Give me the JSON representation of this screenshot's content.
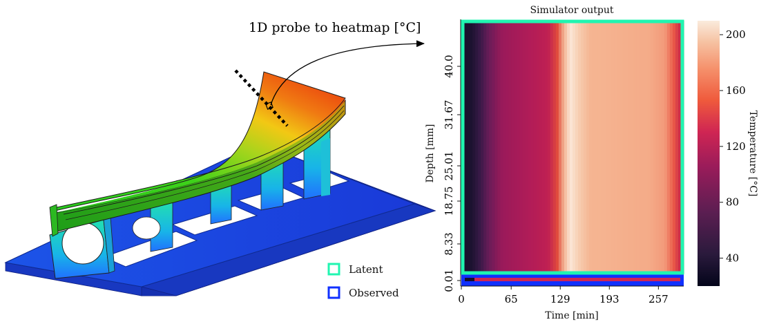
{
  "annotation": {
    "probe_label": "1D probe to heatmap [°C]"
  },
  "legend": {
    "items": [
      {
        "label": "Latent",
        "color": "#20f5b0"
      },
      {
        "label": "Observed",
        "color": "#1030ff"
      }
    ]
  },
  "heatmap": {
    "title": "Simulator output",
    "xlabel": "Time [min]",
    "ylabel": "Depth [mm]",
    "colorbar_label": "Temperature [°C]",
    "x_ticks": [
      "0",
      "65",
      "129",
      "193",
      "257"
    ],
    "y_ticks": [
      "0.01",
      "8.33",
      "18.75",
      "25.01",
      "31.67",
      "40.0"
    ],
    "colorbar_ticks": [
      "40",
      "80",
      "120",
      "160",
      "200"
    ],
    "colorbar_range": [
      20,
      210
    ],
    "colormap": "rocket",
    "latent_color": "#20f5b0",
    "observed_color": "#1030ff"
  },
  "model": {
    "colormap": "jet"
  }
}
